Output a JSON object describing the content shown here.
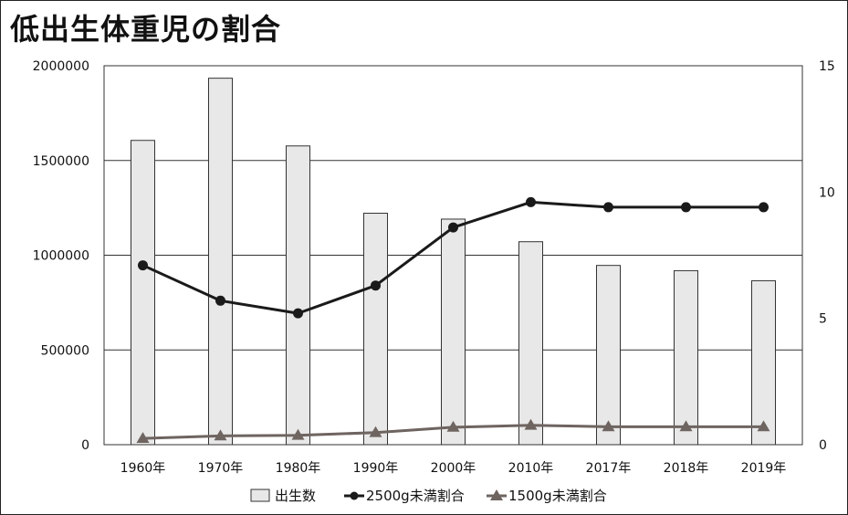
{
  "chart_data": {
    "type": "bar",
    "title": "低出生体重児の割合",
    "categories": [
      "1960年",
      "1970年",
      "1980年",
      "1990年",
      "2000年",
      "2010年",
      "2017年",
      "2018年",
      "2019年"
    ],
    "series": [
      {
        "name": "出生数",
        "type": "bar",
        "axis": "left",
        "values": [
          1606041,
          1934239,
          1576889,
          1221585,
          1190547,
          1071304,
          946146,
          918400,
          865239
        ]
      },
      {
        "name": "2500g未満割合",
        "type": "line",
        "axis": "right",
        "marker": "circle",
        "values": [
          7.1,
          5.7,
          5.2,
          6.3,
          8.6,
          9.6,
          9.4,
          9.4,
          9.4
        ]
      },
      {
        "name": "1500g未満割合",
        "type": "line",
        "axis": "right",
        "marker": "triangle",
        "values": [
          0.25,
          0.35,
          0.37,
          0.48,
          0.69,
          0.77,
          0.71,
          0.71,
          0.71
        ]
      }
    ],
    "ylim": [
      0,
      2000000
    ],
    "y_ticks": [
      "0",
      "500000",
      "1000000",
      "1500000",
      "2000000"
    ],
    "y2lim": [
      0,
      15
    ],
    "y2_ticks": [
      "0",
      "5",
      "10",
      "15"
    ],
    "grid": true,
    "legend_position": "bottom",
    "colors": {
      "bar_fill": "#e8e8e8",
      "bar_stroke": "#333333",
      "line_2500": "#1a1a1a",
      "line_1500": "#6e6460",
      "grid": "#333333"
    }
  }
}
